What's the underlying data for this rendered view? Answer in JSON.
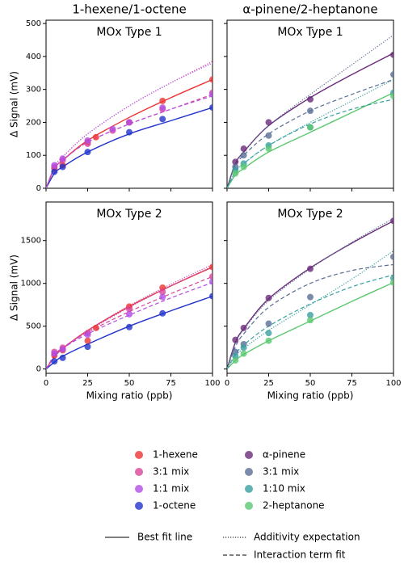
{
  "chart_data": [
    {
      "type": "scatter",
      "column_title": "1-hexene/1-octene",
      "title": "MOx Type 1",
      "ylabel": "Δ Signal (mV)",
      "xlim": [
        0,
        100
      ],
      "xticks": [
        0,
        25,
        50,
        75,
        100
      ],
      "ylim": [
        0,
        510
      ],
      "yticks": [
        0,
        100,
        200,
        300,
        400,
        500
      ],
      "series": [
        {
          "name": "1-hexene",
          "color": "#ee3333",
          "x": [
            5,
            10,
            25,
            30,
            50,
            70,
            100
          ],
          "values": [
            60,
            70,
            140,
            155,
            200,
            265,
            330
          ]
        },
        {
          "name": "3:1 mix",
          "color": "#d9449b",
          "x": [
            5,
            10,
            25,
            40,
            50,
            70,
            100
          ],
          "values": [
            65,
            85,
            135,
            175,
            200,
            240,
            290
          ]
        },
        {
          "name": "1:1 mix",
          "color": "#b34ee6",
          "x": [
            5,
            10,
            25,
            40,
            50,
            70,
            100
          ],
          "values": [
            70,
            90,
            145,
            180,
            200,
            245,
            285
          ]
        },
        {
          "name": "1-octene",
          "color": "#2233cc",
          "x": [
            5,
            10,
            25,
            50,
            70,
            100
          ],
          "values": [
            50,
            65,
            110,
            170,
            210,
            245
          ]
        }
      ],
      "fit_x": [
        0,
        5,
        10,
        25,
        50,
        75,
        100
      ],
      "lines": [
        {
          "color": "#ee3333",
          "dash": "solid",
          "values": [
            0,
            60,
            85,
            145,
            215,
            275,
            330
          ]
        },
        {
          "color": "#2233cc",
          "dash": "solid",
          "values": [
            0,
            45,
            65,
            110,
            165,
            205,
            245
          ]
        },
        {
          "color": "#d9449b",
          "dash": "dashed",
          "values": [
            0,
            60,
            85,
            140,
            195,
            240,
            285
          ]
        },
        {
          "color": "#b34ee6",
          "dash": "dashed",
          "values": [
            0,
            60,
            85,
            140,
            195,
            240,
            280
          ]
        },
        {
          "color": "#d9449b",
          "dash": "dotted",
          "values": [
            0,
            65,
            95,
            165,
            250,
            320,
            385
          ]
        },
        {
          "color": "#b34ee6",
          "dash": "dotted",
          "values": [
            0,
            65,
            95,
            165,
            250,
            320,
            380
          ]
        }
      ]
    },
    {
      "type": "scatter",
      "column_title": "α-pinene/2-heptanone",
      "title": "MOx Type 1",
      "xlim": [
        0,
        100
      ],
      "xticks": [
        0,
        25,
        50,
        75,
        100
      ],
      "ylim": [
        0,
        510
      ],
      "yticks": [
        0,
        100,
        200,
        300,
        400,
        500
      ],
      "series": [
        {
          "name": "α-pinene",
          "color": "#6a2c7a",
          "x": [
            5,
            10,
            25,
            50,
            100
          ],
          "values": [
            80,
            120,
            200,
            270,
            405
          ]
        },
        {
          "name": "3:1 mix",
          "color": "#5a6f96",
          "x": [
            5,
            10,
            25,
            50,
            100
          ],
          "values": [
            65,
            100,
            160,
            235,
            345
          ]
        },
        {
          "name": "1:10 mix",
          "color": "#3aa0a0",
          "x": [
            5,
            10,
            25,
            50,
            100
          ],
          "values": [
            55,
            75,
            130,
            185,
            290
          ]
        },
        {
          "name": "2-heptanone",
          "color": "#5bc870",
          "x": [
            5,
            10,
            25,
            50,
            100
          ],
          "values": [
            45,
            65,
            120,
            185,
            280
          ]
        }
      ],
      "fit_x": [
        0,
        5,
        10,
        25,
        50,
        75,
        100
      ],
      "lines": [
        {
          "color": "#6a2c7a",
          "dash": "solid",
          "values": [
            0,
            75,
            110,
            190,
            275,
            345,
            410
          ]
        },
        {
          "color": "#5bc870",
          "dash": "solid",
          "values": [
            0,
            40,
            60,
            110,
            170,
            230,
            290
          ]
        },
        {
          "color": "#5a6f96",
          "dash": "dotted",
          "values": [
            0,
            75,
            110,
            190,
            285,
            375,
            465
          ]
        },
        {
          "color": "#3aa0a0",
          "dash": "dotted",
          "values": [
            0,
            50,
            75,
            130,
            200,
            265,
            330
          ]
        },
        {
          "color": "#5a6f96",
          "dash": "dashed",
          "values": [
            0,
            70,
            100,
            165,
            235,
            285,
            330
          ]
        },
        {
          "color": "#3aa0a0",
          "dash": "dashed",
          "values": [
            0,
            50,
            75,
            130,
            195,
            240,
            270
          ]
        }
      ]
    },
    {
      "type": "scatter",
      "title": "MOx Type 2",
      "ylabel": "Δ Signal (mV)",
      "xlabel": "Mixing ratio (ppb)",
      "xlim": [
        0,
        100
      ],
      "xticks": [
        0,
        25,
        50,
        75,
        100
      ],
      "ylim": [
        -50,
        1950
      ],
      "yticks": [
        0,
        500,
        1000,
        1500
      ],
      "series": [
        {
          "name": "1-hexene",
          "color": "#ee3333",
          "x": [
            5,
            10,
            25,
            30,
            50,
            70,
            100
          ],
          "values": [
            160,
            220,
            330,
            480,
            730,
            950,
            1190
          ]
        },
        {
          "name": "3:1 mix",
          "color": "#d9449b",
          "x": [
            5,
            10,
            25,
            50,
            70,
            100
          ],
          "values": [
            200,
            250,
            420,
            700,
            900,
            1080
          ]
        },
        {
          "name": "1:1 mix",
          "color": "#b34ee6",
          "x": [
            5,
            10,
            25,
            50,
            70,
            100
          ],
          "values": [
            180,
            230,
            400,
            640,
            840,
            1020
          ]
        },
        {
          "name": "1-octene",
          "color": "#2233cc",
          "x": [
            5,
            10,
            25,
            50,
            70,
            100
          ],
          "values": [
            90,
            130,
            260,
            490,
            650,
            850
          ]
        }
      ],
      "fit_x": [
        0,
        5,
        10,
        25,
        50,
        75,
        100
      ],
      "lines": [
        {
          "color": "#ee3333",
          "dash": "solid",
          "values": [
            0,
            140,
            240,
            450,
            730,
            970,
            1190
          ]
        },
        {
          "color": "#2233cc",
          "dash": "solid",
          "values": [
            0,
            80,
            150,
            290,
            500,
            680,
            850
          ]
        },
        {
          "color": "#d9449b",
          "dash": "dashed",
          "values": [
            0,
            160,
            250,
            430,
            670,
            880,
            1080
          ]
        },
        {
          "color": "#b34ee6",
          "dash": "dashed",
          "values": [
            0,
            150,
            240,
            410,
            630,
            830,
            1010
          ]
        },
        {
          "color": "#d9449b",
          "dash": "dotted",
          "values": [
            0,
            140,
            240,
            450,
            740,
            990,
            1220
          ]
        },
        {
          "color": "#b34ee6",
          "dash": "dotted",
          "values": [
            0,
            135,
            235,
            440,
            720,
            970,
            1200
          ]
        }
      ]
    },
    {
      "type": "scatter",
      "title": "MOx Type 2",
      "xlabel": "Mixing ratio (ppb)",
      "xlim": [
        0,
        100
      ],
      "xticks": [
        0,
        25,
        50,
        75,
        100
      ],
      "ylim": [
        -50,
        1950
      ],
      "yticks": [
        0,
        500,
        1000,
        1500
      ],
      "series": [
        {
          "name": "α-pinene",
          "color": "#6a2c7a",
          "x": [
            5,
            10,
            25,
            50,
            100
          ],
          "values": [
            340,
            480,
            830,
            1170,
            1730
          ]
        },
        {
          "name": "3:1 mix",
          "color": "#5a6f96",
          "x": [
            5,
            10,
            25,
            50,
            100
          ],
          "values": [
            200,
            290,
            530,
            840,
            1310
          ]
        },
        {
          "name": "1:10 mix",
          "color": "#3aa0a0",
          "x": [
            5,
            10,
            25,
            50,
            100
          ],
          "values": [
            150,
            250,
            420,
            630,
            1060
          ]
        },
        {
          "name": "2-heptanone",
          "color": "#5bc870",
          "x": [
            5,
            10,
            25,
            50,
            100
          ],
          "values": [
            100,
            180,
            330,
            570,
            1010
          ]
        }
      ],
      "fit_x": [
        0,
        5,
        10,
        25,
        50,
        75,
        100
      ],
      "lines": [
        {
          "color": "#6a2c7a",
          "dash": "solid",
          "values": [
            0,
            310,
            470,
            820,
            1180,
            1470,
            1730
          ]
        },
        {
          "color": "#5bc870",
          "dash": "solid",
          "values": [
            0,
            100,
            170,
            330,
            560,
            790,
            1010
          ]
        },
        {
          "color": "#5a6f96",
          "dash": "dotted",
          "values": [
            0,
            300,
            460,
            800,
            1170,
            1480,
            1760
          ]
        },
        {
          "color": "#3aa0a0",
          "dash": "dotted",
          "values": [
            0,
            150,
            240,
            450,
            750,
            1050,
            1380
          ]
        },
        {
          "color": "#5a6f96",
          "dash": "dashed",
          "values": [
            0,
            260,
            410,
            720,
            1000,
            1150,
            1220
          ]
        },
        {
          "color": "#3aa0a0",
          "dash": "dashed",
          "values": [
            0,
            170,
            280,
            500,
            760,
            960,
            1100
          ]
        }
      ]
    }
  ],
  "line_styles": [
    {
      "label": "Best fit line",
      "dash": "solid"
    },
    {
      "label": "Additivity expectation",
      "dash": "dotted"
    },
    {
      "label": "Interaction term fit",
      "dash": "dashed"
    }
  ]
}
